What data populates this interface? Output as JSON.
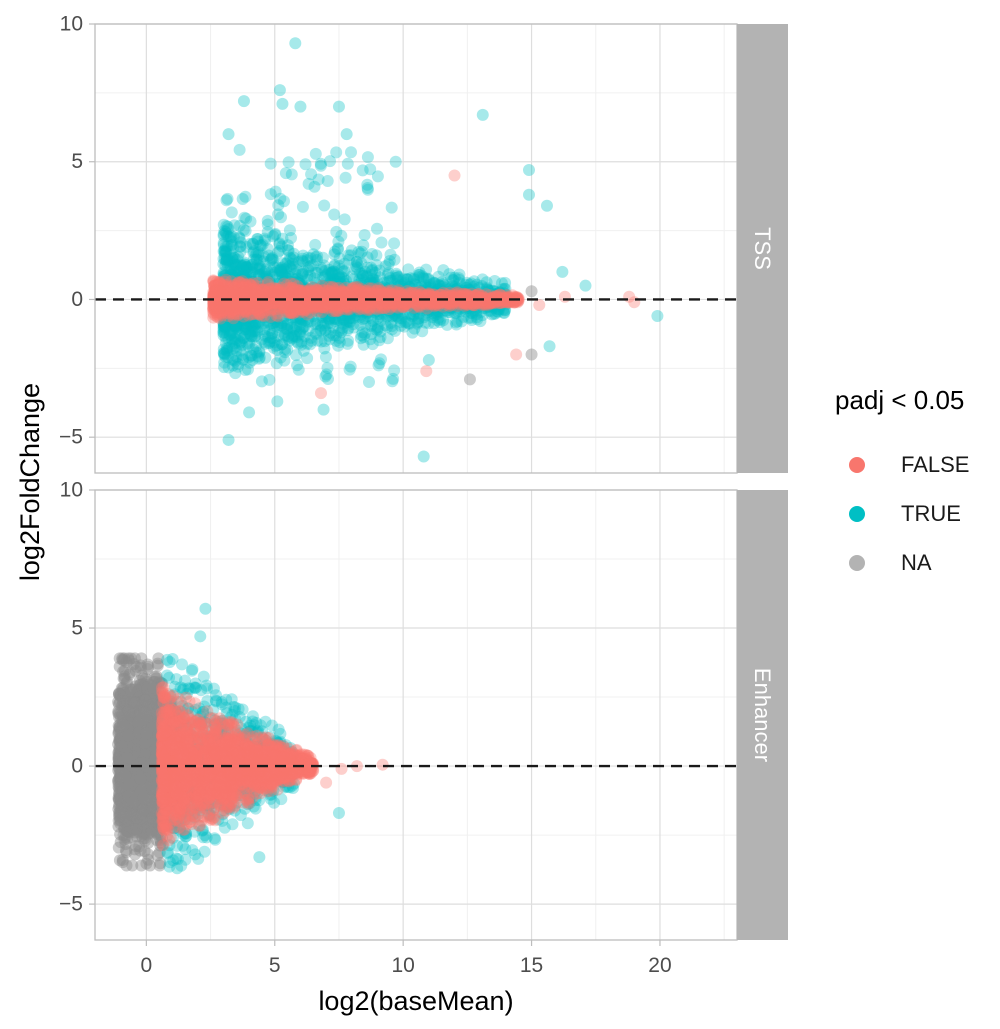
{
  "chart_data": {
    "type": "scatter",
    "xlabel": "log2(baseMean)",
    "ylabel": "log2FoldChange",
    "xlim": [
      -2,
      23
    ],
    "x_ticks": [
      "0",
      "5",
      "10",
      "15",
      "20"
    ],
    "y_ticks": [
      "−5",
      "0",
      "5",
      "10"
    ],
    "x_tick_values": [
      0,
      5,
      10,
      15,
      20
    ],
    "y_tick_values": [
      -5,
      0,
      5,
      10
    ],
    "reference_line_y": 0,
    "grid": true,
    "legend_placement": "right",
    "legend": {
      "title": "padj < 0.05",
      "entries": [
        {
          "label": "FALSE",
          "color": "#F8766D"
        },
        {
          "label": "TRUE",
          "color": "#00BFC4"
        },
        {
          "label": "NA",
          "color": "#999999"
        }
      ]
    },
    "panels": [
      {
        "strip_label": "TSS",
        "ylim": [
          -6.3,
          10
        ],
        "clouds": [
          {
            "series": "TRUE",
            "shape": "funnel",
            "x_range": [
              3.0,
              14.0
            ],
            "half_width_start": 2.8,
            "half_width_end": 0.6,
            "n": 1700
          },
          {
            "series": "TRUE",
            "shape": "rect",
            "x_range": [
              3.0,
              10.0
            ],
            "y_range": [
              -3.0,
              5.5
            ],
            "n": 170
          },
          {
            "series": "FALSE",
            "shape": "funnel",
            "x_range": [
              2.6,
              14.5
            ],
            "half_width_start": 0.75,
            "half_width_end": 0.15,
            "n": 1700
          }
        ],
        "points": [
          {
            "series": "TRUE",
            "x": 5.8,
            "y": 9.3
          },
          {
            "series": "TRUE",
            "x": 5.2,
            "y": 7.6
          },
          {
            "series": "TRUE",
            "x": 5.3,
            "y": 7.1
          },
          {
            "series": "TRUE",
            "x": 3.8,
            "y": 7.2
          },
          {
            "series": "TRUE",
            "x": 6.0,
            "y": 7.0
          },
          {
            "series": "TRUE",
            "x": 7.5,
            "y": 7.0
          },
          {
            "series": "TRUE",
            "x": 13.1,
            "y": 6.7
          },
          {
            "series": "TRUE",
            "x": 3.2,
            "y": 6.0
          },
          {
            "series": "TRUE",
            "x": 7.8,
            "y": 6.0
          },
          {
            "series": "TRUE",
            "x": 14.9,
            "y": 4.7
          },
          {
            "series": "TRUE",
            "x": 14.9,
            "y": 3.8
          },
          {
            "series": "TRUE",
            "x": 15.6,
            "y": 3.4
          },
          {
            "series": "TRUE",
            "x": 16.2,
            "y": 1.0
          },
          {
            "series": "TRUE",
            "x": 17.1,
            "y": 0.5
          },
          {
            "series": "TRUE",
            "x": 19.9,
            "y": -0.6
          },
          {
            "series": "TRUE",
            "x": 15.7,
            "y": -1.7
          },
          {
            "series": "TRUE",
            "x": 3.2,
            "y": -5.1
          },
          {
            "series": "TRUE",
            "x": 4.0,
            "y": -4.1
          },
          {
            "series": "TRUE",
            "x": 3.4,
            "y": -3.6
          },
          {
            "series": "TRUE",
            "x": 5.1,
            "y": -3.7
          },
          {
            "series": "TRUE",
            "x": 6.9,
            "y": -4.0
          },
          {
            "series": "TRUE",
            "x": 10.8,
            "y": -5.7
          },
          {
            "series": "TRUE",
            "x": 11.0,
            "y": -2.2
          },
          {
            "series": "FALSE",
            "x": 12.0,
            "y": 4.5
          },
          {
            "series": "FALSE",
            "x": 18.8,
            "y": 0.1
          },
          {
            "series": "FALSE",
            "x": 19.0,
            "y": -0.1
          },
          {
            "series": "FALSE",
            "x": 16.3,
            "y": 0.1
          },
          {
            "series": "FALSE",
            "x": 15.3,
            "y": -0.2
          },
          {
            "series": "FALSE",
            "x": 14.4,
            "y": -2.0
          },
          {
            "series": "FALSE",
            "x": 10.9,
            "y": -2.6
          },
          {
            "series": "FALSE",
            "x": 6.8,
            "y": -3.4
          },
          {
            "series": "NA",
            "x": 15.0,
            "y": 0.3
          },
          {
            "series": "NA",
            "x": 15.0,
            "y": -2.0
          },
          {
            "series": "NA",
            "x": 12.6,
            "y": -2.9
          }
        ]
      },
      {
        "strip_label": "Enhancer",
        "ylim": [
          -6.3,
          10
        ],
        "clouds": [
          {
            "series": "NA",
            "shape": "blob",
            "x_range": [
              -1.1,
              0.65
            ],
            "y_range": [
              -3.6,
              3.9
            ],
            "n": 1600
          },
          {
            "series": "TRUE",
            "shape": "funnel",
            "x_range": [
              0.8,
              5.8
            ],
            "half_width_start": 4.2,
            "half_width_end": 1.0,
            "n": 800
          },
          {
            "series": "FALSE",
            "shape": "funnel",
            "x_range": [
              0.6,
              6.5
            ],
            "half_width_start": 2.9,
            "half_width_end": 0.3,
            "n": 1900
          }
        ],
        "points": [
          {
            "series": "TRUE",
            "x": 2.3,
            "y": 5.7
          },
          {
            "series": "TRUE",
            "x": 2.1,
            "y": 4.7
          },
          {
            "series": "TRUE",
            "x": 4.4,
            "y": -3.3
          },
          {
            "series": "TRUE",
            "x": 7.5,
            "y": -1.7
          },
          {
            "series": "TRUE",
            "x": 1.2,
            "y": -3.7
          },
          {
            "series": "TRUE",
            "x": 1.9,
            "y": -3.2
          },
          {
            "series": "FALSE",
            "x": 7.0,
            "y": -0.6
          },
          {
            "series": "FALSE",
            "x": 7.6,
            "y": -0.1
          },
          {
            "series": "FALSE",
            "x": 8.2,
            "y": 0.0
          },
          {
            "series": "FALSE",
            "x": 9.2,
            "y": 0.05
          }
        ]
      }
    ]
  }
}
